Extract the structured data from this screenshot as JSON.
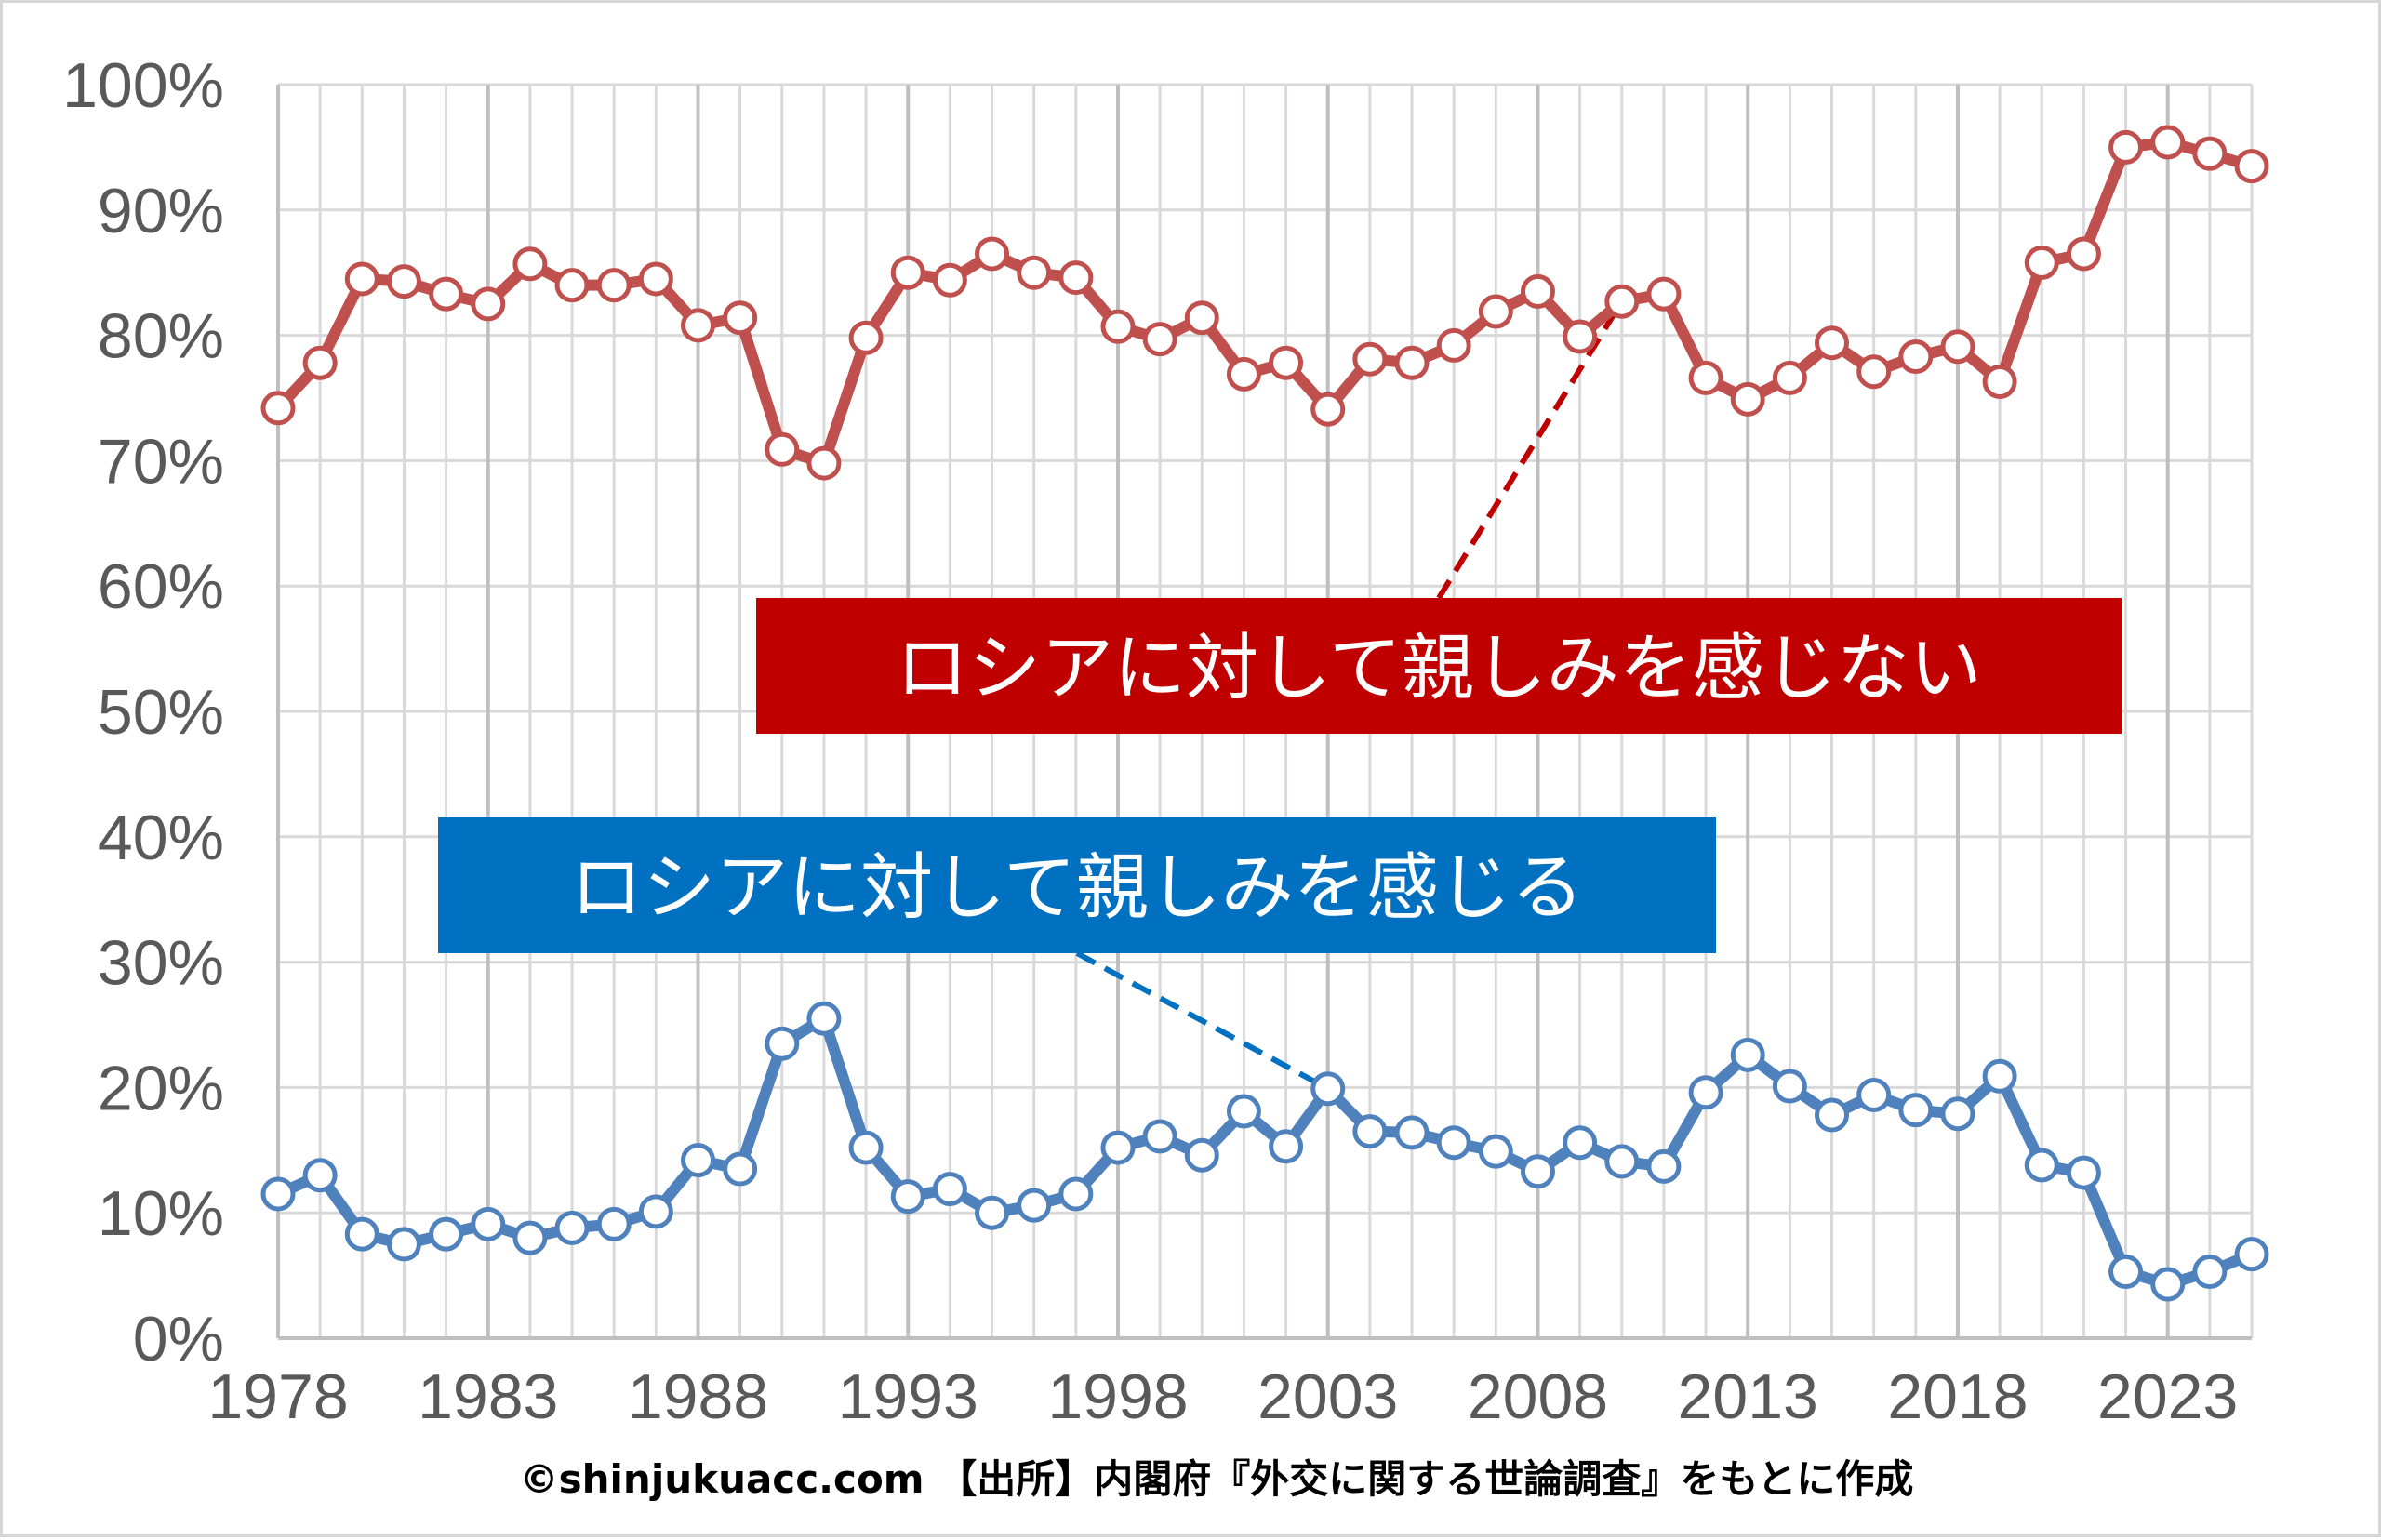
{
  "chart_data": {
    "type": "line",
    "title": "",
    "xlabel": "",
    "ylabel": "",
    "x": [
      1978,
      1979,
      1980,
      1981,
      1982,
      1983,
      1984,
      1985,
      1986,
      1987,
      1988,
      1989,
      1990,
      1991,
      1992,
      1993,
      1994,
      1995,
      1996,
      1997,
      1998,
      1999,
      2000,
      2001,
      2002,
      2003,
      2004,
      2005,
      2006,
      2007,
      2008,
      2009,
      2010,
      2011,
      2012,
      2013,
      2014,
      2015,
      2016,
      2017,
      2018,
      2019,
      2020,
      2021,
      2022,
      2023,
      2024,
      2025
    ],
    "x_ticks": [
      "1978",
      "1983",
      "1988",
      "1993",
      "1998",
      "2003",
      "2008",
      "2013",
      "2018",
      "2023"
    ],
    "x_tick_values": [
      1978,
      1983,
      1988,
      1993,
      1998,
      2003,
      2008,
      2013,
      2018,
      2023
    ],
    "xlim": [
      1978,
      2025
    ],
    "ylim": [
      0,
      100
    ],
    "y_ticks": [
      "0%",
      "10%",
      "20%",
      "30%",
      "40%",
      "50%",
      "60%",
      "70%",
      "80%",
      "90%",
      "100%"
    ],
    "y_tick_values": [
      0,
      10,
      20,
      30,
      40,
      50,
      60,
      70,
      80,
      90,
      100
    ],
    "grid": true,
    "series": [
      {
        "name": "ロシアに対して親しみを感じない",
        "color": "#c0504d",
        "label_bg": "#c00000",
        "values": [
          74.2,
          77.8,
          84.5,
          84.3,
          83.3,
          82.5,
          85.7,
          84.0,
          84.0,
          84.5,
          80.8,
          81.4,
          70.9,
          69.8,
          79.8,
          85.0,
          84.4,
          86.5,
          85.0,
          84.6,
          80.7,
          79.7,
          81.4,
          76.9,
          77.8,
          74.1,
          78.1,
          77.8,
          79.2,
          81.9,
          83.5,
          79.9,
          82.7,
          83.3,
          76.6,
          74.9,
          76.6,
          79.4,
          77.1,
          78.3,
          79.1,
          76.3,
          85.8,
          86.5,
          95.0,
          95.4,
          94.5,
          93.5
        ]
      },
      {
        "name": "ロシアに対して親しみを感じる",
        "color": "#4f81bd",
        "label_bg": "#0070c0",
        "values": [
          11.5,
          13.0,
          8.3,
          7.5,
          8.3,
          9.1,
          8.0,
          8.8,
          9.1,
          10.1,
          14.2,
          13.5,
          23.5,
          25.5,
          15.2,
          11.3,
          11.9,
          10.0,
          10.6,
          11.5,
          15.2,
          16.1,
          14.6,
          18.1,
          15.3,
          19.9,
          16.5,
          16.4,
          15.6,
          14.9,
          13.3,
          15.6,
          14.1,
          13.7,
          19.6,
          22.6,
          20.1,
          17.8,
          19.4,
          18.2,
          17.9,
          20.9,
          13.8,
          13.2,
          5.3,
          4.3,
          5.3,
          6.7
        ]
      }
    ],
    "annotations": [
      {
        "text": "ロシアに対して親しみを感じない",
        "series": 0,
        "target_x": 2010
      },
      {
        "text": "ロシアに対して親しみを感じる",
        "series": 1,
        "target_x": 2003
      }
    ],
    "source": "©shinjukuacc.com 【出所】内閣府『外交に関する世論調査』をもとに作成"
  }
}
